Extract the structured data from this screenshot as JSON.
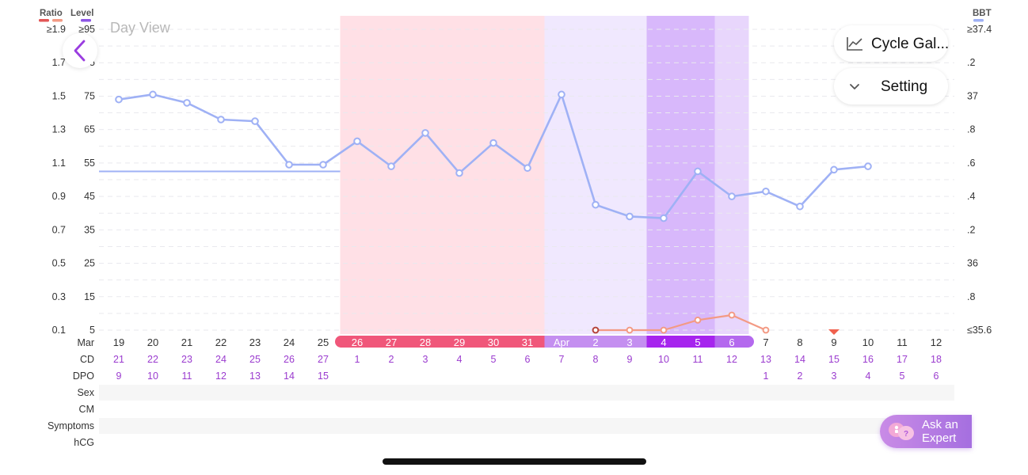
{
  "header": {
    "ratio_label": "Ratio",
    "level_label": "Level",
    "bbt_label": "BBT",
    "ratio_colors": [
      "#e25555",
      "#f39a84"
    ],
    "level_color": "#8d55e6",
    "bbt_color": "#9fb1f5"
  },
  "day_view_label": "Day View",
  "buttons": {
    "back_icon": "chevron-left-icon",
    "cycle_gallery_label": "Cycle Gal...",
    "cycle_gallery_icon": "line-chart-icon",
    "setting_label": "Setting",
    "setting_icon": "chevron-down-icon",
    "ask_expert_line1": "Ask an",
    "ask_expert_line2": "Expert",
    "ask_expert_icon": "chat-bubbles-icon"
  },
  "chart_data": {
    "type": "line",
    "left_axis_ratio_ticks": [
      "≥1.9",
      "1.7",
      "1.5",
      "1.3",
      "1.1",
      "0.9",
      "0.7",
      "0.5",
      "0.3",
      "0.1"
    ],
    "left_axis_level_ticks": [
      "≥95",
      "85",
      "75",
      "65",
      "55",
      "45",
      "35",
      "25",
      "15",
      "5"
    ],
    "right_axis_bbt_ticks": [
      "≥37.4",
      ".2",
      "37",
      ".8",
      ".6",
      ".4",
      ".2",
      "36",
      ".8",
      "≤35.6"
    ],
    "bbt_range": [
      35.6,
      37.4
    ],
    "bbt_coverline": 36.55,
    "bbt_series": {
      "name": "BBT",
      "color": "#9fb1f5",
      "values": [
        36.98,
        37.01,
        36.96,
        36.86,
        36.85,
        36.59,
        36.59,
        36.73,
        36.58,
        36.78,
        36.54,
        36.72,
        36.57,
        37.01,
        36.35,
        36.28,
        36.27,
        36.55,
        36.4,
        36.43,
        36.34,
        36.56,
        36.58
      ]
    },
    "lh_series": {
      "name": "Ratio",
      "color": "#f39a84",
      "start_index": 14,
      "values": [
        0.1,
        0.1,
        0.1,
        0.16,
        0.19,
        0.1
      ]
    },
    "x_dates": [
      {
        "label": "19",
        "cd": "21",
        "dpo": "9",
        "band": ""
      },
      {
        "label": "20",
        "cd": "22",
        "dpo": "10",
        "band": ""
      },
      {
        "label": "21",
        "cd": "23",
        "dpo": "11",
        "band": ""
      },
      {
        "label": "22",
        "cd": "24",
        "dpo": "12",
        "band": ""
      },
      {
        "label": "23",
        "cd": "25",
        "dpo": "13",
        "band": ""
      },
      {
        "label": "24",
        "cd": "26",
        "dpo": "14",
        "band": ""
      },
      {
        "label": "25",
        "cd": "27",
        "dpo": "15",
        "band": ""
      },
      {
        "label": "26",
        "cd": "1",
        "dpo": "",
        "band": "period"
      },
      {
        "label": "27",
        "cd": "2",
        "dpo": "",
        "band": "period"
      },
      {
        "label": "28",
        "cd": "3",
        "dpo": "",
        "band": "period"
      },
      {
        "label": "29",
        "cd": "4",
        "dpo": "",
        "band": "period"
      },
      {
        "label": "30",
        "cd": "5",
        "dpo": "",
        "band": "period"
      },
      {
        "label": "31",
        "cd": "6",
        "dpo": "",
        "band": "period"
      },
      {
        "label": "Apr",
        "cd": "7",
        "dpo": "",
        "band": "fertile-light"
      },
      {
        "label": "2",
        "cd": "8",
        "dpo": "",
        "band": "fertile-light"
      },
      {
        "label": "3",
        "cd": "9",
        "dpo": "",
        "band": "fertile-light"
      },
      {
        "label": "4",
        "cd": "10",
        "dpo": "",
        "band": "fertile-peak"
      },
      {
        "label": "5",
        "cd": "11",
        "dpo": "",
        "band": "fertile-peak"
      },
      {
        "label": "6",
        "cd": "12",
        "dpo": "",
        "band": "fertile-high"
      },
      {
        "label": "7",
        "cd": "13",
        "dpo": "1",
        "band": ""
      },
      {
        "label": "8",
        "cd": "14",
        "dpo": "2",
        "band": ""
      },
      {
        "label": "9",
        "cd": "15",
        "dpo": "3",
        "band": "",
        "ovulation_marker": true
      },
      {
        "label": "10",
        "cd": "16",
        "dpo": "4",
        "band": ""
      },
      {
        "label": "11",
        "cd": "17",
        "dpo": "5",
        "band": ""
      },
      {
        "label": "12",
        "cd": "18",
        "dpo": "6",
        "band": ""
      }
    ],
    "band_colors": {
      "period": "#ffe0e6",
      "period_strip": "#f0577a",
      "fertile-light": "#f0e8fe",
      "fertile-light_strip": "#c48ff0",
      "fertile-peak": "#d8b8fb",
      "fertile-peak_strip": "#a624ee",
      "fertile-high": "#e8d6fc",
      "fertile-high_strip": "#b469ee"
    },
    "row_labels": {
      "date_row": "Mar",
      "cd_row": "CD",
      "dpo_row": "DPO",
      "sex_row": "Sex",
      "cm_row": "CM",
      "symptoms_row": "Symptoms",
      "hcg_row": "hCG"
    },
    "grid": true,
    "legend": "top-left"
  }
}
